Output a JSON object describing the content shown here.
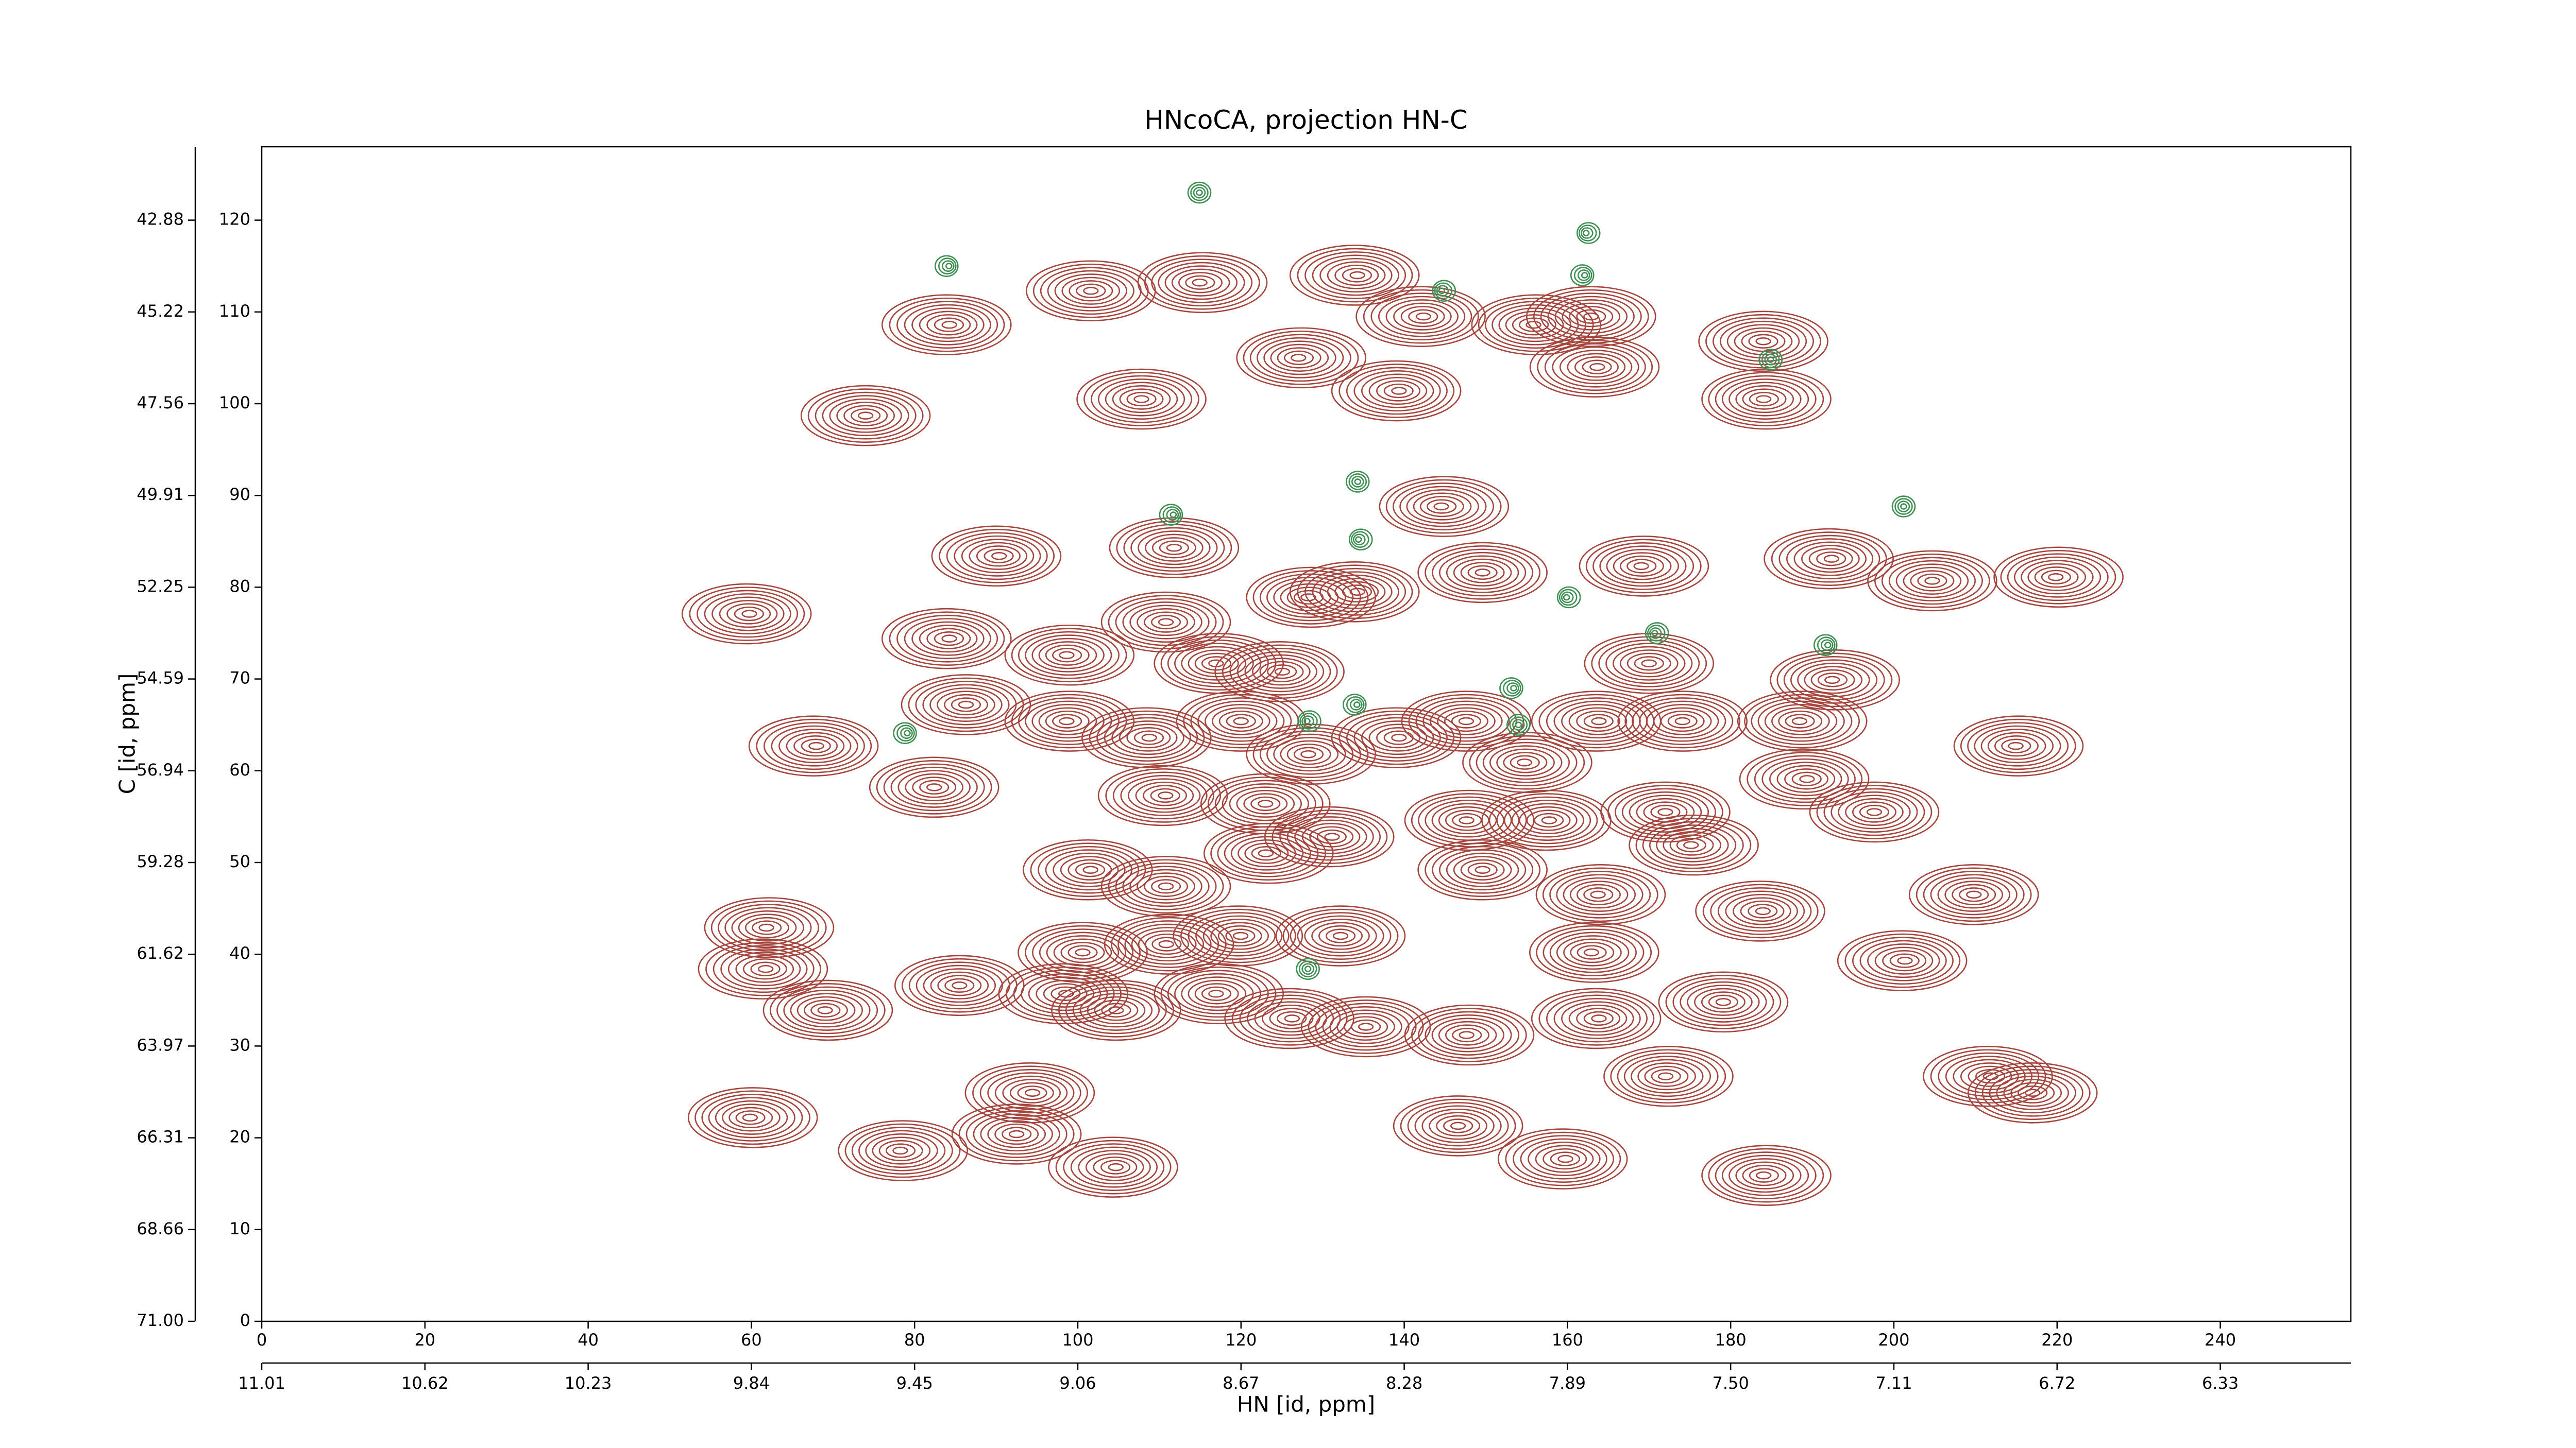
{
  "chart_data": {
    "type": "contour",
    "title": "HNcoCA, projection HN-C",
    "x_label": "HN [id, ppm]",
    "y_label": "C [id, ppm]",
    "xlim": [
      0,
      256
    ],
    "ylim": [
      0,
      128
    ],
    "xticks": [
      0,
      20,
      40,
      60,
      80,
      100,
      120,
      140,
      160,
      180,
      200,
      220,
      240
    ],
    "yticks": [
      0,
      10,
      20,
      30,
      40,
      50,
      60,
      70,
      80,
      90,
      100,
      110,
      120
    ],
    "x2ticks": [
      {
        "value": 0,
        "label": "11.01"
      },
      {
        "value": 20,
        "label": "10.62"
      },
      {
        "value": 40,
        "label": "10.23"
      },
      {
        "value": 60,
        "label": "9.84"
      },
      {
        "value": 80,
        "label": "9.45"
      },
      {
        "value": 100,
        "label": "9.06"
      },
      {
        "value": 120,
        "label": "8.67"
      },
      {
        "value": 140,
        "label": "8.28"
      },
      {
        "value": 160,
        "label": "7.89"
      },
      {
        "value": 180,
        "label": "7.50"
      },
      {
        "value": 200,
        "label": "7.11"
      },
      {
        "value": 220,
        "label": "6.72"
      },
      {
        "value": 240,
        "label": "6.33"
      }
    ],
    "y2ticks": [
      {
        "value": 0,
        "label": "71.00"
      },
      {
        "value": 10,
        "label": "68.66"
      },
      {
        "value": 20,
        "label": "66.31"
      },
      {
        "value": 30,
        "label": "63.97"
      },
      {
        "value": 40,
        "label": "61.62"
      },
      {
        "value": 50,
        "label": "59.28"
      },
      {
        "value": 60,
        "label": "56.94"
      },
      {
        "value": 70,
        "label": "54.59"
      },
      {
        "value": 80,
        "label": "52.25"
      },
      {
        "value": 90,
        "label": "49.91"
      },
      {
        "value": 100,
        "label": "47.56"
      },
      {
        "value": 110,
        "label": "45.22"
      },
      {
        "value": 120,
        "label": "42.88"
      }
    ],
    "color": "#a5453d",
    "negative_color": "#3f8f55",
    "peaks": [
      [
        84.3,
        108.6
      ],
      [
        101.6,
        112.3
      ],
      [
        114.9,
        113.2
      ],
      [
        134.3,
        114
      ],
      [
        107.8,
        100.5
      ],
      [
        127,
        105
      ],
      [
        142.4,
        109.5
      ],
      [
        162.9,
        109.5
      ],
      [
        155.8,
        108.6
      ],
      [
        163.7,
        104
      ],
      [
        184,
        106.8
      ],
      [
        184,
        100.5
      ],
      [
        139.4,
        101.4
      ],
      [
        74,
        98.7
      ],
      [
        144.5,
        88.8
      ],
      [
        90.4,
        83.4
      ],
      [
        111.8,
        84.3
      ],
      [
        128.2,
        78.9
      ],
      [
        134.3,
        79.5
      ],
      [
        149.6,
        81.6
      ],
      [
        169,
        82.3
      ],
      [
        192.4,
        83.1
      ],
      [
        204.7,
        80.7
      ],
      [
        219.8,
        81.1
      ],
      [
        59.8,
        77.1
      ],
      [
        110.8,
        76.2
      ],
      [
        98.6,
        72.6
      ],
      [
        84.3,
        74.4
      ],
      [
        86.3,
        67.2
      ],
      [
        116.9,
        71.7
      ],
      [
        125.1,
        70.8
      ],
      [
        170,
        71.7
      ],
      [
        192.4,
        69.9
      ],
      [
        68,
        62.7
      ],
      [
        82.4,
        58.2
      ],
      [
        98.6,
        65.4
      ],
      [
        108.8,
        63.6
      ],
      [
        120,
        65.4
      ],
      [
        128.2,
        61.8
      ],
      [
        139.4,
        63.6
      ],
      [
        147.6,
        65.4
      ],
      [
        154.7,
        60.9
      ],
      [
        163.9,
        65.4
      ],
      [
        174.1,
        65.4
      ],
      [
        188.4,
        65.4
      ],
      [
        189.4,
        59.1
      ],
      [
        197.6,
        55.5
      ],
      [
        214.9,
        62.7
      ],
      [
        110.8,
        57.3
      ],
      [
        123,
        56.4
      ],
      [
        147.6,
        54.6
      ],
      [
        157.8,
        54.6
      ],
      [
        172,
        55.5
      ],
      [
        175.1,
        51.9
      ],
      [
        101.6,
        49.2
      ],
      [
        110.8,
        47.4
      ],
      [
        123,
        51
      ],
      [
        131.2,
        52.8
      ],
      [
        149.6,
        49.2
      ],
      [
        163.7,
        46.5
      ],
      [
        184,
        44.7
      ],
      [
        209.8,
        46.5
      ],
      [
        61.8,
        42.9
      ],
      [
        61.8,
        38.4
      ],
      [
        100.6,
        40.2
      ],
      [
        110.8,
        41.1
      ],
      [
        120,
        42
      ],
      [
        132.2,
        42
      ],
      [
        162.9,
        40.2
      ],
      [
        201.4,
        39.3
      ],
      [
        85.5,
        36.6
      ],
      [
        69,
        33.9
      ],
      [
        98.6,
        35.7
      ],
      [
        104.7,
        33.9
      ],
      [
        116.9,
        35.7
      ],
      [
        126.3,
        33
      ],
      [
        135.3,
        32.1
      ],
      [
        147.6,
        31.2
      ],
      [
        163.9,
        33
      ],
      [
        179.1,
        34.8
      ],
      [
        172,
        26.7
      ],
      [
        211.9,
        26.7
      ],
      [
        217,
        24.9
      ],
      [
        59.8,
        22.2
      ],
      [
        94.5,
        24.9
      ],
      [
        92.5,
        20.4
      ],
      [
        78.2,
        18.6
      ],
      [
        104.7,
        16.8
      ],
      [
        146.6,
        21.3
      ],
      [
        184,
        15.9
      ],
      [
        159.8,
        17.7
      ]
    ],
    "negative_peaks": [
      [
        84.3,
        115
      ],
      [
        114.9,
        123
      ],
      [
        162.2,
        118.6
      ],
      [
        162.2,
        114
      ],
      [
        134.3,
        91.5
      ],
      [
        134.3,
        85.2
      ],
      [
        111.8,
        87.9
      ],
      [
        201.2,
        88.8
      ],
      [
        144.5,
        112.3
      ],
      [
        153.5,
        69
      ],
      [
        154,
        65
      ],
      [
        128,
        65.4
      ],
      [
        134.3,
        67.2
      ],
      [
        128.2,
        38.4
      ],
      [
        159.8,
        78.9
      ],
      [
        79.2,
        64.1
      ],
      [
        184.9,
        104.8
      ],
      [
        170.6,
        75
      ],
      [
        192,
        73.7
      ]
    ]
  }
}
